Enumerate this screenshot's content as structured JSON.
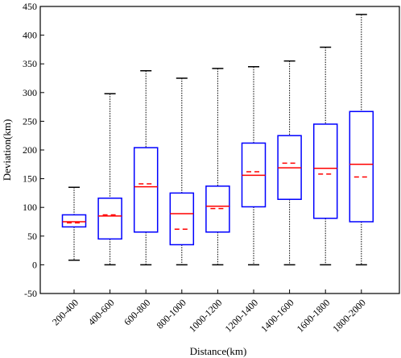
{
  "chart_data": {
    "type": "boxplot",
    "xlabel": "Distance(km)",
    "ylabel": "Deviation(km)",
    "ylim": [
      -50,
      450
    ],
    "yticks": [
      -50,
      0,
      50,
      100,
      150,
      200,
      250,
      300,
      350,
      400,
      450
    ],
    "grid": false,
    "colors": {
      "box": "#0000ff",
      "median": "#ff0000",
      "mean": "#ff0000",
      "whisker": "#000000"
    },
    "boxes": [
      {
        "category": "200-400",
        "min": 8,
        "q1": 66,
        "median": 75,
        "mean": 73,
        "q3": 87,
        "max": 135
      },
      {
        "category": "400-600",
        "min": 0,
        "q1": 45,
        "median": 85,
        "mean": 87,
        "q3": 116,
        "max": 298
      },
      {
        "category": "600-800",
        "min": 0,
        "q1": 57,
        "median": 136,
        "mean": 141,
        "q3": 204,
        "max": 338
      },
      {
        "category": "800-1000",
        "min": 0,
        "q1": 35,
        "median": 89,
        "mean": 62,
        "q3": 125,
        "max": 325
      },
      {
        "category": "1000-1200",
        "min": 0,
        "q1": 57,
        "median": 102,
        "mean": 98,
        "q3": 137,
        "max": 342
      },
      {
        "category": "1200-1400",
        "min": 0,
        "q1": 101,
        "median": 156,
        "mean": 162,
        "q3": 212,
        "max": 345
      },
      {
        "category": "1400-1600",
        "min": 0,
        "q1": 114,
        "median": 169,
        "mean": 177,
        "q3": 225,
        "max": 355
      },
      {
        "category": "1600-1800",
        "min": 0,
        "q1": 81,
        "median": 168,
        "mean": 158,
        "q3": 245,
        "max": 379
      },
      {
        "category": "1800-2000",
        "min": 0,
        "q1": 75,
        "median": 175,
        "mean": 153,
        "q3": 267,
        "max": 436
      }
    ]
  }
}
